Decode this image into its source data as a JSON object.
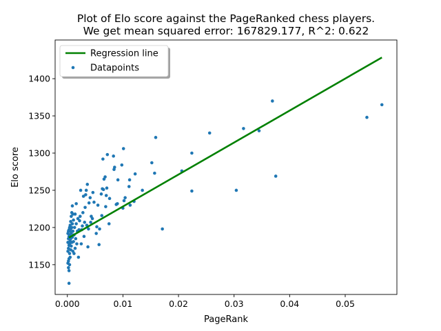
{
  "chart_data": {
    "type": "scatter",
    "title": "Plot of Elo score against the PageRanked chess players.",
    "subtitle": "We get mean squared error: 167829.177, R^2: 0.622",
    "xlabel": "PageRank",
    "ylabel": "Elo score",
    "xlim": [
      -0.0022,
      0.0593
    ],
    "ylim": [
      1110,
      1452
    ],
    "x_ticks": [
      0.0,
      0.01,
      0.02,
      0.03,
      0.04,
      0.05
    ],
    "x_tick_labels": [
      "0.000",
      "0.01",
      "0.02",
      "0.03",
      "0.04",
      "0.05"
    ],
    "y_ticks": [
      1150,
      1200,
      1250,
      1300,
      1350,
      1400
    ],
    "y_tick_labels": [
      "1150",
      "1200",
      "1250",
      "1300",
      "1350",
      "1400"
    ],
    "grid": false,
    "legend_position": "upper-left",
    "series": [
      {
        "name": "Regression line",
        "kind": "line",
        "color": "#008000",
        "points": [
          [
            0.0003,
            1186.5
          ],
          [
            0.0566,
            1428.5
          ]
        ]
      },
      {
        "name": "Datapoints",
        "kind": "scatter",
        "color": "#1f77b4",
        "points": [
          [
            0.0566,
            1365
          ],
          [
            0.0539,
            1348
          ],
          [
            0.0369,
            1370
          ],
          [
            0.0375,
            1269
          ],
          [
            0.0345,
            1330
          ],
          [
            0.0317,
            1333
          ],
          [
            0.0304,
            1250
          ],
          [
            0.0256,
            1327
          ],
          [
            0.0224,
            1300
          ],
          [
            0.0224,
            1249
          ],
          [
            0.0206,
            1276
          ],
          [
            0.0171,
            1198
          ],
          [
            0.0159,
            1321
          ],
          [
            0.0157,
            1273
          ],
          [
            0.0152,
            1287
          ],
          [
            0.0135,
            1250
          ],
          [
            0.0122,
            1272
          ],
          [
            0.012,
            1235
          ],
          [
            0.0113,
            1230
          ],
          [
            0.0112,
            1264
          ],
          [
            0.0111,
            1255
          ],
          [
            0.0104,
            1240
          ],
          [
            0.0102,
            1236
          ],
          [
            0.0101,
            1306
          ],
          [
            0.01,
            1226
          ],
          [
            0.0098,
            1284
          ],
          [
            0.0091,
            1264
          ],
          [
            0.009,
            1232
          ],
          [
            0.0088,
            1231
          ],
          [
            0.0085,
            1281
          ],
          [
            0.0084,
            1278
          ],
          [
            0.0083,
            1296
          ],
          [
            0.0076,
            1239
          ],
          [
            0.0075,
            1205
          ],
          [
            0.0072,
            1298
          ],
          [
            0.0071,
            1253
          ],
          [
            0.007,
            1243
          ],
          [
            0.0069,
            1228
          ],
          [
            0.0068,
            1268
          ],
          [
            0.0066,
            1265
          ],
          [
            0.0065,
            1251
          ],
          [
            0.0064,
            1292
          ],
          [
            0.0063,
            1252
          ],
          [
            0.0062,
            1216
          ],
          [
            0.0061,
            1245
          ],
          [
            0.0058,
            1198
          ],
          [
            0.0057,
            1177
          ],
          [
            0.0055,
            1230
          ],
          [
            0.0053,
            1201
          ],
          [
            0.0052,
            1192
          ],
          [
            0.0048,
            1234
          ],
          [
            0.0046,
            1247
          ],
          [
            0.0045,
            1212
          ],
          [
            0.0043,
            1215
          ],
          [
            0.0042,
            1207
          ],
          [
            0.0041,
            1240
          ],
          [
            0.0039,
            1233
          ],
          [
            0.0038,
            1198
          ],
          [
            0.0037,
            1174
          ],
          [
            0.0036,
            1258
          ],
          [
            0.0035,
            1203
          ],
          [
            0.0034,
            1250
          ],
          [
            0.0033,
            1244
          ],
          [
            0.0032,
            1227
          ],
          [
            0.0031,
            1207
          ],
          [
            0.003,
            1188
          ],
          [
            0.0029,
            1242
          ],
          [
            0.0028,
            1220
          ],
          [
            0.0027,
            1202
          ],
          [
            0.0026,
            1197
          ],
          [
            0.0025,
            1178
          ],
          [
            0.0024,
            1250
          ],
          [
            0.0023,
            1215
          ],
          [
            0.0022,
            1209
          ],
          [
            0.0021,
            1197
          ],
          [
            0.002,
            1160
          ],
          [
            0.0019,
            1212
          ],
          [
            0.0018,
            1195
          ],
          [
            0.0017,
            1178
          ],
          [
            0.0016,
            1232
          ],
          [
            0.0016,
            1205
          ],
          [
            0.0015,
            1185
          ],
          [
            0.0014,
            1218
          ],
          [
            0.0014,
            1172
          ],
          [
            0.0013,
            1200
          ],
          [
            0.0012,
            1190
          ],
          [
            0.0012,
            1165
          ],
          [
            0.0011,
            1210
          ],
          [
            0.0011,
            1181
          ],
          [
            0.001,
            1218
          ],
          [
            0.001,
            1195
          ],
          [
            0.001,
            1168
          ],
          [
            0.0009,
            1229
          ],
          [
            0.0009,
            1205
          ],
          [
            0.0009,
            1187
          ],
          [
            0.0008,
            1220
          ],
          [
            0.0008,
            1200
          ],
          [
            0.0008,
            1180
          ],
          [
            0.0007,
            1215
          ],
          [
            0.0007,
            1192
          ],
          [
            0.0007,
            1175
          ],
          [
            0.0006,
            1208
          ],
          [
            0.0006,
            1198
          ],
          [
            0.0006,
            1185
          ],
          [
            0.0006,
            1170
          ],
          [
            0.0005,
            1203
          ],
          [
            0.0005,
            1195
          ],
          [
            0.0005,
            1182
          ],
          [
            0.0005,
            1160
          ],
          [
            0.0004,
            1200
          ],
          [
            0.0004,
            1190
          ],
          [
            0.0004,
            1178
          ],
          [
            0.0004,
            1165
          ],
          [
            0.0004,
            1150
          ],
          [
            0.0003,
            1197
          ],
          [
            0.0003,
            1188
          ],
          [
            0.0003,
            1176
          ],
          [
            0.0003,
            1158
          ],
          [
            0.0003,
            1142
          ],
          [
            0.0003,
            1125
          ],
          [
            0.0002,
            1195
          ],
          [
            0.0002,
            1185
          ],
          [
            0.0002,
            1172
          ],
          [
            0.0002,
            1155
          ],
          [
            0.0002,
            1146
          ],
          [
            0.0001,
            1192
          ],
          [
            0.0001,
            1180
          ],
          [
            0.0001,
            1168
          ],
          [
            0.0001,
            1152
          ]
        ]
      }
    ]
  }
}
